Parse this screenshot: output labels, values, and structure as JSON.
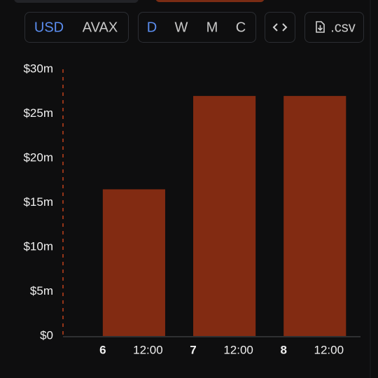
{
  "toolbar": {
    "currency": [
      "USD",
      "AVAX"
    ],
    "period": [
      "D",
      "W",
      "M",
      "C"
    ],
    "download": ".csv"
  },
  "chart_data": {
    "type": "bar",
    "x": [
      6,
      7,
      8
    ],
    "values": [
      16.5,
      27,
      27
    ],
    "color": "#822b12",
    "xlim": [
      5.56,
      8.85
    ],
    "xticks": [
      6,
      {
        "value": 6.5,
        "label": "12:00"
      },
      7,
      {
        "value": 7.5,
        "label": "12:00"
      },
      8,
      {
        "value": 8.5,
        "label": "12:00"
      }
    ],
    "ylim": [
      0,
      30
    ],
    "yticks": [
      {
        "value": 0,
        "label": "$0"
      },
      {
        "value": 5,
        "label": "$5m"
      },
      {
        "value": 10,
        "label": "$10m"
      },
      {
        "value": 15,
        "label": "$15m"
      },
      {
        "value": 20,
        "label": "$20m"
      },
      {
        "value": 25,
        "label": "$25m"
      },
      {
        "value": 30,
        "label": "$30m"
      }
    ]
  }
}
